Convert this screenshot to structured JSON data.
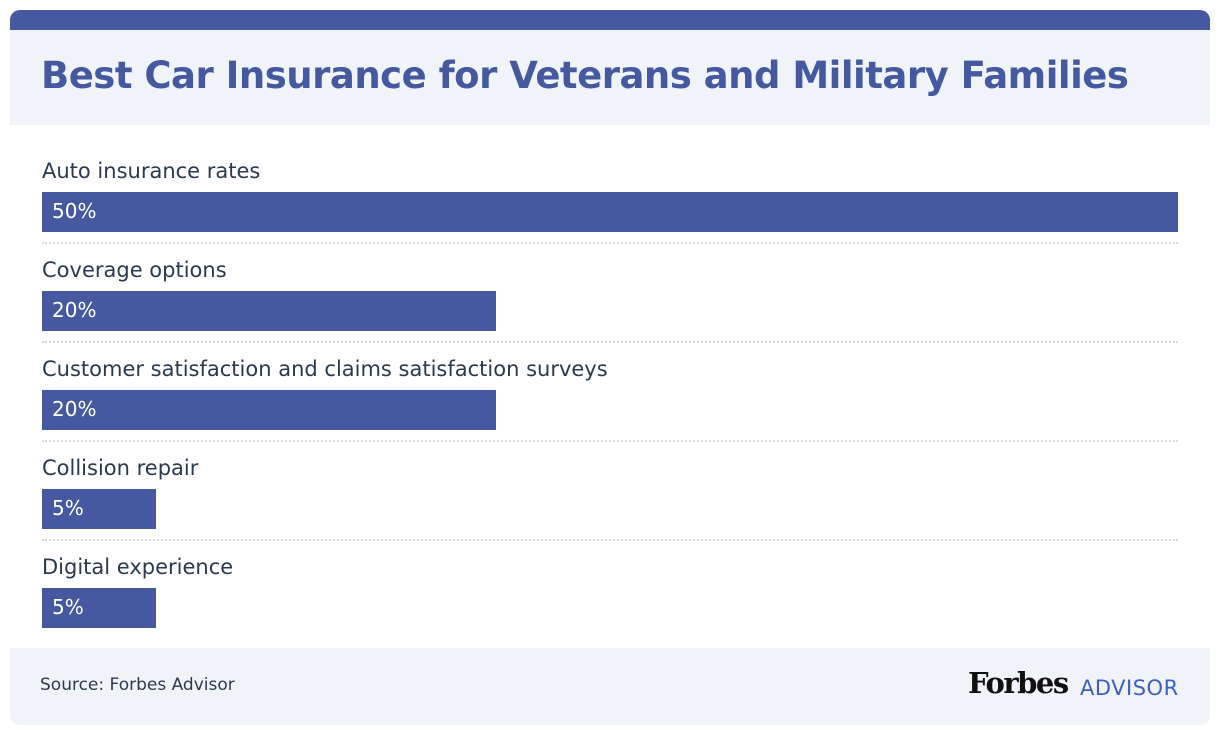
{
  "chart_data": {
    "type": "bar",
    "orientation": "horizontal",
    "title": "Best Car Insurance for Veterans and Military Families",
    "categories": [
      "Auto insurance rates",
      "Coverage options",
      "Customer satisfaction and claims satisfaction surveys",
      "Collision repair",
      "Digital experience"
    ],
    "values": [
      50,
      20,
      20,
      5,
      5
    ],
    "value_labels": [
      "50%",
      "20%",
      "20%",
      "5%",
      "5%"
    ],
    "xlim": [
      0,
      50
    ],
    "bar_color": "#4558a0"
  },
  "footer": {
    "source": "Source: Forbes Advisor",
    "logo_main": "Forbes",
    "logo_sub": "ADVISOR"
  }
}
